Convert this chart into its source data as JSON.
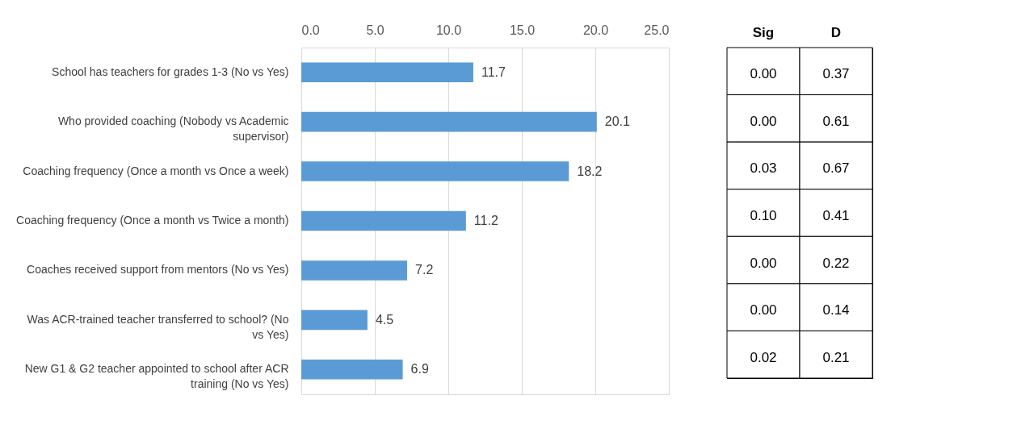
{
  "chart_data": [
    {
      "type": "bar",
      "orientation": "horizontal",
      "categories": [
        "School has teachers for grades 1-3  (No vs Yes)",
        "Who provided coaching (Nobody vs Academic supervisor)",
        "Coaching frequency (Once a month vs Once a week)",
        "Coaching frequency (Once a month vs Twice a month)",
        "Coaches received support from mentors (No vs Yes)",
        "Was ACR-trained teacher transferred to school? (No vs Yes)",
        "New G1 & G2 teacher appointed to school after ACR training (No vs Yes)"
      ],
      "values": [
        11.7,
        20.1,
        18.2,
        11.2,
        7.2,
        4.5,
        6.9
      ],
      "color": "#5b9bd5",
      "xlim": [
        0,
        25
      ],
      "xticks": [
        {
          "value": 0,
          "label": "0.0"
        },
        {
          "value": 5,
          "label": "5.0"
        },
        {
          "value": 10,
          "label": "10.0"
        },
        {
          "value": 15,
          "label": "15.0"
        },
        {
          "value": 20,
          "label": "20.0"
        },
        {
          "value": 25,
          "label": "25.0"
        }
      ],
      "grid": "x",
      "data_labels": true
    },
    {
      "type": "other",
      "categories": [
        "Sig",
        "D"
      ],
      "annotations": [
        "0.00",
        "0.37",
        "0.00",
        "0.61",
        "0.03",
        "0.67",
        "0.10",
        "0.41",
        "0.00",
        "0.22",
        "0.00",
        "0.14",
        "0.02",
        "0.21"
      ]
    }
  ]
}
